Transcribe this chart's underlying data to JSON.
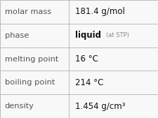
{
  "rows": [
    {
      "label": "molar mass",
      "value": "181.4 g/mol",
      "bold": false,
      "extra": null,
      "sup": null
    },
    {
      "label": "phase",
      "value": "liquid",
      "bold": true,
      "extra": "(at STP)",
      "sup": null
    },
    {
      "label": "melting point",
      "value": "16 °C",
      "bold": false,
      "extra": null,
      "sup": null
    },
    {
      "label": "boiling point",
      "value": "214 °C",
      "bold": false,
      "extra": null,
      "sup": null
    },
    {
      "label": "density",
      "value": "1.454 g/cm³",
      "bold": false,
      "extra": null,
      "sup": null
    }
  ],
  "col_split": 0.435,
  "bg_color": "#f8f8f8",
  "border_color": "#bbbbbb",
  "label_color": "#555555",
  "value_color": "#111111",
  "extra_color": "#888888",
  "label_fontsize": 8.2,
  "value_fontsize": 8.5,
  "extra_fontsize": 6.0,
  "fig_w": 2.26,
  "fig_h": 1.69,
  "dpi": 100
}
